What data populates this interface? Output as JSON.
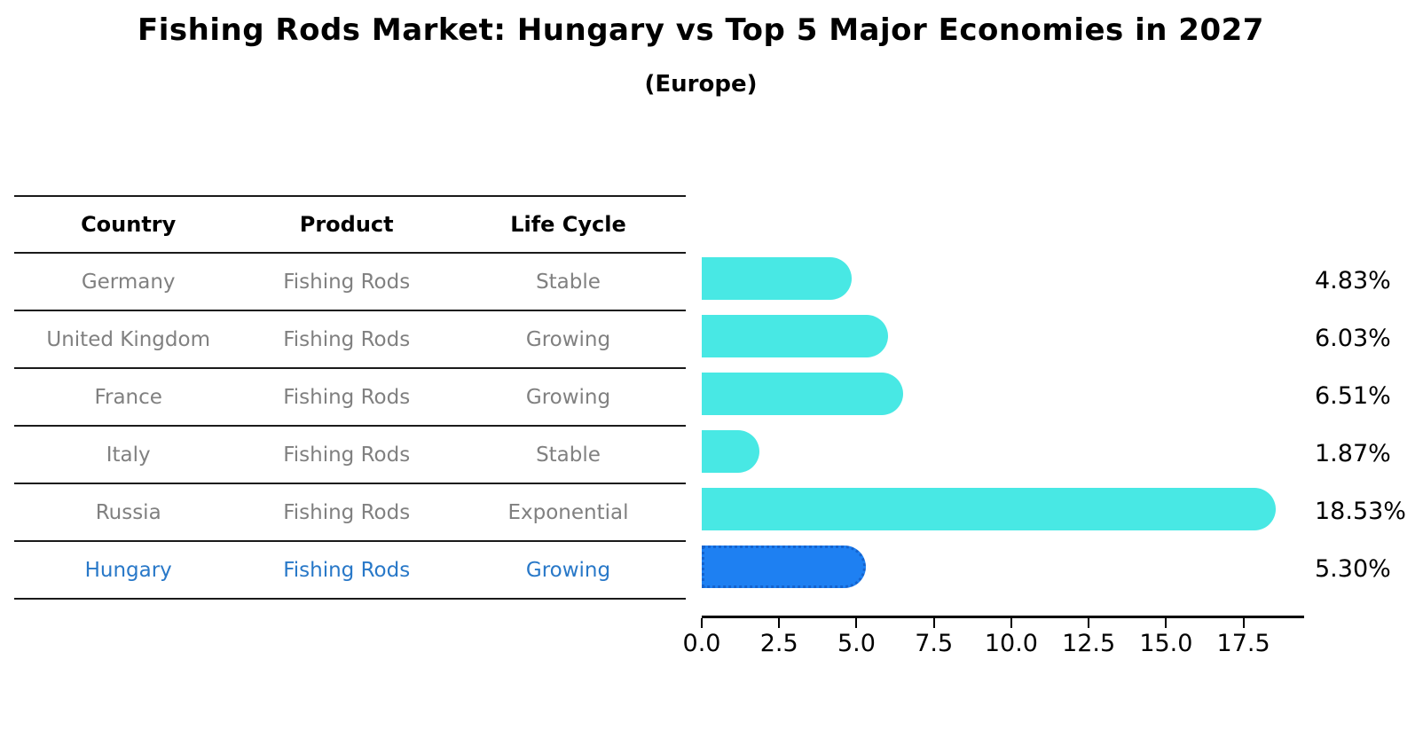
{
  "header": {
    "title": "Fishing Rods Market: Hungary vs Top 5 Major Economies in 2027",
    "subtitle": "(Europe)"
  },
  "table": {
    "columns": [
      "Country",
      "Product",
      "Life Cycle"
    ],
    "rows": [
      {
        "country": "Germany",
        "product": "Fishing Rods",
        "life_cycle": "Stable"
      },
      {
        "country": "United Kingdom",
        "product": "Fishing Rods",
        "life_cycle": "Growing"
      },
      {
        "country": "France",
        "product": "Fishing Rods",
        "life_cycle": "Growing"
      },
      {
        "country": "Italy",
        "product": "Fishing Rods",
        "life_cycle": "Stable"
      },
      {
        "country": "Russia",
        "product": "Fishing Rods",
        "life_cycle": "Exponential"
      },
      {
        "country": "Hungary",
        "product": "Fishing Rods",
        "life_cycle": "Growing"
      }
    ],
    "row_text_color": "#808080",
    "header_text_color": "#000000",
    "highlight_text_color": "#2878C8",
    "line_color": "#1a1a1a"
  },
  "chart_data": {
    "type": "bar",
    "orientation": "horizontal",
    "title": "Fishing Rods Market: Hungary vs Top 5 Major Economies in 2027",
    "subtitle": "(Europe)",
    "categories": [
      "Germany",
      "United Kingdom",
      "France",
      "Italy",
      "Russia",
      "Hungary"
    ],
    "values": [
      4.83,
      6.03,
      6.51,
      1.87,
      18.53,
      5.3
    ],
    "display_values": [
      "4.83%",
      "6.03%",
      "6.51%",
      "1.87%",
      "18.53%",
      "5.30%"
    ],
    "xlabel": "",
    "ylabel": "",
    "xlim": [
      0,
      19.46
    ],
    "xticks": [
      0,
      2.5,
      5,
      7.5,
      10,
      12.5,
      15,
      17.5
    ],
    "xtick_labels": [
      "0.0",
      "2.5",
      "5.0",
      "7.5",
      "10.0",
      "12.5",
      "15.0",
      "17.5"
    ],
    "grid": false,
    "legend": "none",
    "bar_color": "#48E8E4",
    "highlight_color": "#1E80F2",
    "highlight_border_color": "#1463CE",
    "highlight_index": 5
  }
}
